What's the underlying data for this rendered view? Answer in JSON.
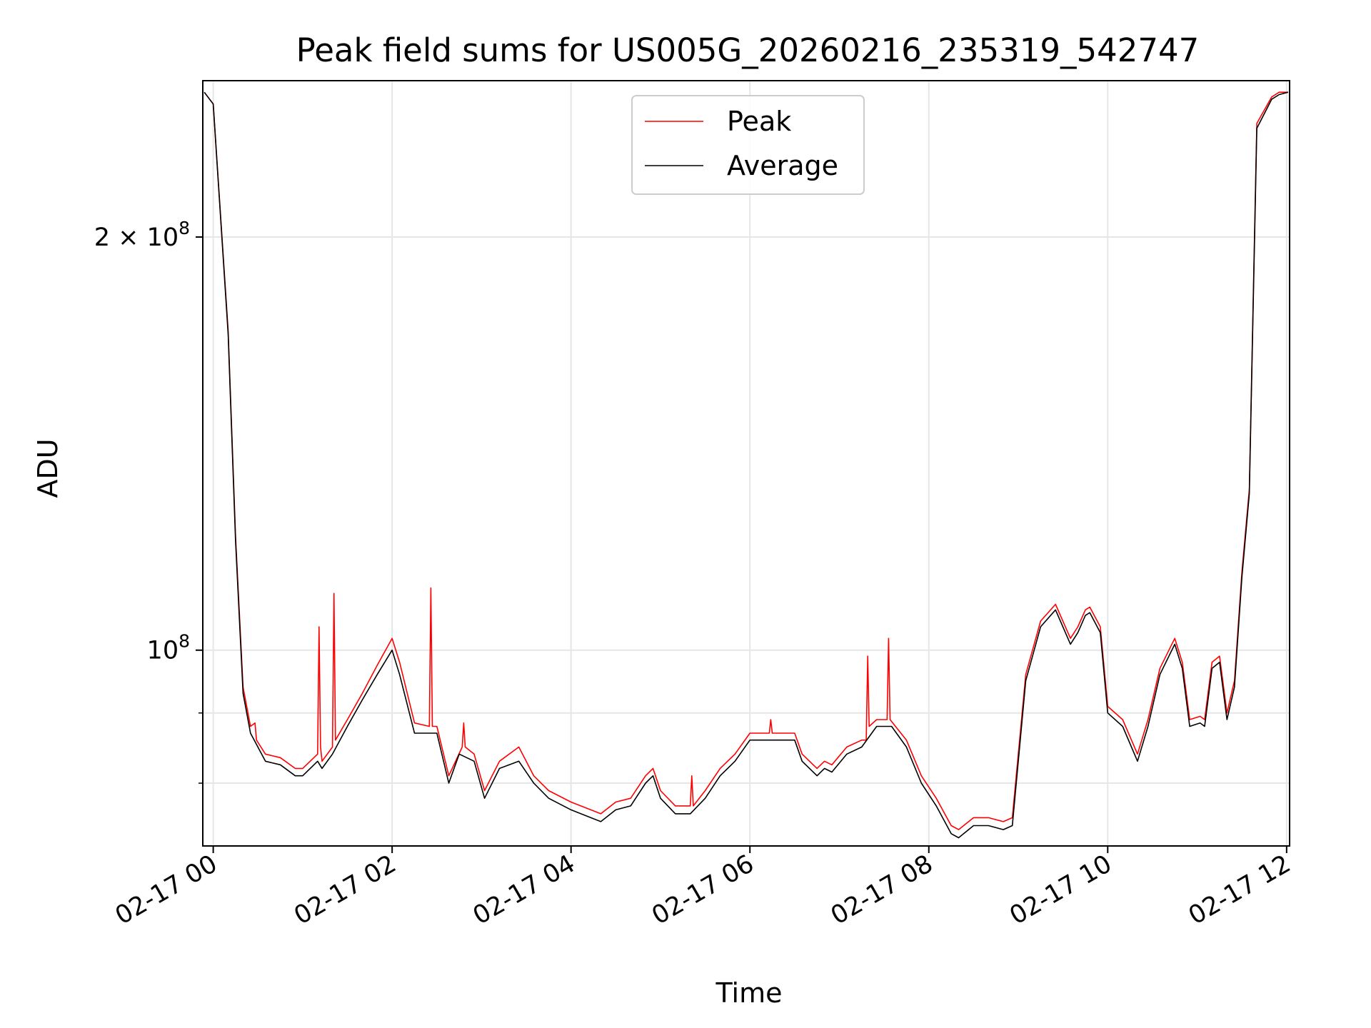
{
  "chart_data": {
    "type": "line",
    "title": "Peak field sums for US005G_20260216_235319_542747",
    "xlabel": "Time",
    "ylabel": "ADU",
    "yscale": "log",
    "ylim": [
      72000000,
      260000000
    ],
    "xlim": [
      "2026-02-16 23:53",
      "2026-02-17 12:02"
    ],
    "x_tick_labels": [
      "02-17 00",
      "02-17 02",
      "02-17 04",
      "02-17 06",
      "02-17 08",
      "02-17 10",
      "02-17 12"
    ],
    "x_ticks": [
      "2026-02-17 00:00",
      "2026-02-17 02:00",
      "2026-02-17 04:00",
      "2026-02-17 06:00",
      "2026-02-17 08:00",
      "2026-02-17 10:00",
      "2026-02-17 12:00"
    ],
    "y_major_ticks": [
      {
        "value": 100000000,
        "label_base": "10",
        "label_exp": "8"
      },
      {
        "value": 200000000,
        "label_base": "2 × 10",
        "label_exp": "8"
      }
    ],
    "y_minor_ticks": [
      80000000,
      90000000
    ],
    "grid": true,
    "legend": {
      "placement": "upper center",
      "entries": [
        "Peak",
        "Average"
      ]
    },
    "series": [
      {
        "name": "Average",
        "color": "#000000",
        "x": [
          "2026-02-16 23:54",
          "2026-02-17 00:00",
          "2026-02-17 00:10",
          "2026-02-17 00:15",
          "2026-02-17 00:20",
          "2026-02-17 00:25",
          "2026-02-17 00:35",
          "2026-02-17 00:45",
          "2026-02-17 00:55",
          "2026-02-17 01:00",
          "2026-02-17 01:10",
          "2026-02-17 01:13",
          "2026-02-17 01:20",
          "2026-02-17 01:30",
          "2026-02-17 01:40",
          "2026-02-17 01:50",
          "2026-02-17 02:00",
          "2026-02-17 02:05",
          "2026-02-17 02:15",
          "2026-02-17 02:25",
          "2026-02-17 02:30",
          "2026-02-17 02:38",
          "2026-02-17 02:45",
          "2026-02-17 02:55",
          "2026-02-17 03:02",
          "2026-02-17 03:12",
          "2026-02-17 03:25",
          "2026-02-17 03:35",
          "2026-02-17 03:45",
          "2026-02-17 04:00",
          "2026-02-17 04:20",
          "2026-02-17 04:30",
          "2026-02-17 04:40",
          "2026-02-17 04:50",
          "2026-02-17 04:55",
          "2026-02-17 05:00",
          "2026-02-17 05:10",
          "2026-02-17 05:20",
          "2026-02-17 05:30",
          "2026-02-17 05:40",
          "2026-02-17 05:50",
          "2026-02-17 06:00",
          "2026-02-17 06:20",
          "2026-02-17 06:30",
          "2026-02-17 06:35",
          "2026-02-17 06:45",
          "2026-02-17 06:50",
          "2026-02-17 06:55",
          "2026-02-17 07:05",
          "2026-02-17 07:15",
          "2026-02-17 07:25",
          "2026-02-17 07:35",
          "2026-02-17 07:45",
          "2026-02-17 07:55",
          "2026-02-17 08:05",
          "2026-02-17 08:15",
          "2026-02-17 08:20",
          "2026-02-17 08:30",
          "2026-02-17 08:40",
          "2026-02-17 08:50",
          "2026-02-17 08:56",
          "2026-02-17 09:05",
          "2026-02-17 09:15",
          "2026-02-17 09:25",
          "2026-02-17 09:35",
          "2026-02-17 09:40",
          "2026-02-17 09:45",
          "2026-02-17 09:48",
          "2026-02-17 09:55",
          "2026-02-17 10:00",
          "2026-02-17 10:10",
          "2026-02-17 10:20",
          "2026-02-17 10:27",
          "2026-02-17 10:35",
          "2026-02-17 10:45",
          "2026-02-17 10:50",
          "2026-02-17 10:55",
          "2026-02-17 11:02",
          "2026-02-17 11:05",
          "2026-02-17 11:10",
          "2026-02-17 11:15",
          "2026-02-17 11:20",
          "2026-02-17 11:25",
          "2026-02-17 11:30",
          "2026-02-17 11:35",
          "2026-02-17 11:40",
          "2026-02-17 11:50",
          "2026-02-17 11:55",
          "2026-02-17 12:01"
        ],
        "values": [
          255000000,
          250000000,
          170000000,
          120000000,
          93000000,
          87000000,
          83000000,
          82500000,
          81000000,
          81000000,
          83000000,
          82000000,
          84000000,
          88000000,
          92000000,
          96000000,
          100000000,
          96000000,
          87000000,
          87000000,
          87000000,
          80000000,
          84000000,
          83000000,
          78000000,
          82000000,
          83000000,
          80000000,
          78000000,
          76500000,
          75000000,
          76500000,
          77000000,
          80000000,
          81000000,
          78000000,
          76000000,
          76000000,
          78000000,
          81000000,
          83000000,
          86000000,
          86000000,
          86000000,
          83000000,
          81000000,
          82000000,
          81500000,
          84000000,
          85000000,
          88000000,
          88000000,
          85000000,
          80000000,
          77000000,
          73500000,
          73000000,
          74500000,
          74500000,
          74000000,
          74500000,
          95000000,
          104000000,
          107000000,
          101000000,
          103000000,
          106000000,
          106500000,
          103000000,
          90000000,
          88000000,
          83000000,
          88000000,
          96000000,
          101000000,
          97000000,
          88000000,
          88500000,
          88000000,
          97000000,
          98000000,
          89000000,
          94000000,
          113000000,
          130000000,
          240000000,
          252000000,
          254000000,
          255000000
        ]
      },
      {
        "name": "Peak",
        "color": "#ff0000",
        "x": [
          "2026-02-16 23:54",
          "2026-02-17 00:00",
          "2026-02-17 00:10",
          "2026-02-17 00:15",
          "2026-02-17 00:20",
          "2026-02-17 00:25",
          "2026-02-17 00:28",
          "2026-02-17 00:29",
          "2026-02-17 00:35",
          "2026-02-17 00:45",
          "2026-02-17 00:55",
          "2026-02-17 01:00",
          "2026-02-17 01:10",
          "2026-02-17 01:11",
          "2026-02-17 01:12",
          "2026-02-17 01:13",
          "2026-02-17 01:20",
          "2026-02-17 01:21",
          "2026-02-17 01:22",
          "2026-02-17 01:30",
          "2026-02-17 01:40",
          "2026-02-17 01:50",
          "2026-02-17 02:00",
          "2026-02-17 02:05",
          "2026-02-17 02:15",
          "2026-02-17 02:25",
          "2026-02-17 02:26",
          "2026-02-17 02:27",
          "2026-02-17 02:30",
          "2026-02-17 02:38",
          "2026-02-17 02:47",
          "2026-02-17 02:48",
          "2026-02-17 02:49",
          "2026-02-17 02:55",
          "2026-02-17 03:02",
          "2026-02-17 03:12",
          "2026-02-17 03:25",
          "2026-02-17 03:35",
          "2026-02-17 03:45",
          "2026-02-17 04:00",
          "2026-02-17 04:20",
          "2026-02-17 04:30",
          "2026-02-17 04:40",
          "2026-02-17 04:50",
          "2026-02-17 04:55",
          "2026-02-17 05:00",
          "2026-02-17 05:10",
          "2026-02-17 05:20",
          "2026-02-17 05:21",
          "2026-02-17 05:22",
          "2026-02-17 05:30",
          "2026-02-17 05:40",
          "2026-02-17 05:50",
          "2026-02-17 06:00",
          "2026-02-17 06:13",
          "2026-02-17 06:14",
          "2026-02-17 06:15",
          "2026-02-17 06:30",
          "2026-02-17 06:35",
          "2026-02-17 06:45",
          "2026-02-17 06:50",
          "2026-02-17 06:55",
          "2026-02-17 07:05",
          "2026-02-17 07:15",
          "2026-02-17 07:18",
          "2026-02-17 07:19",
          "2026-02-17 07:20",
          "2026-02-17 07:25",
          "2026-02-17 07:32",
          "2026-02-17 07:33",
          "2026-02-17 07:34",
          "2026-02-17 07:45",
          "2026-02-17 07:55",
          "2026-02-17 08:05",
          "2026-02-17 08:15",
          "2026-02-17 08:20",
          "2026-02-17 08:30",
          "2026-02-17 08:40",
          "2026-02-17 08:50",
          "2026-02-17 08:56",
          "2026-02-17 09:05",
          "2026-02-17 09:15",
          "2026-02-17 09:25",
          "2026-02-17 09:35",
          "2026-02-17 09:40",
          "2026-02-17 09:45",
          "2026-02-17 09:48",
          "2026-02-17 09:55",
          "2026-02-17 10:00",
          "2026-02-17 10:10",
          "2026-02-17 10:20",
          "2026-02-17 10:27",
          "2026-02-17 10:35",
          "2026-02-17 10:45",
          "2026-02-17 10:50",
          "2026-02-17 10:55",
          "2026-02-17 11:02",
          "2026-02-17 11:05",
          "2026-02-17 11:10",
          "2026-02-17 11:15",
          "2026-02-17 11:20",
          "2026-02-17 11:25",
          "2026-02-17 11:30",
          "2026-02-17 11:35",
          "2026-02-17 11:40",
          "2026-02-17 11:50",
          "2026-02-17 11:55",
          "2026-02-17 12:01"
        ],
        "values": [
          255000000,
          250000000,
          171000000,
          121000000,
          94000000,
          88000000,
          88500000,
          86000000,
          84000000,
          83500000,
          82000000,
          82000000,
          84000000,
          104000000,
          85000000,
          83000000,
          85000000,
          110000000,
          86000000,
          89000000,
          93000000,
          97500000,
          102000000,
          98000000,
          88500000,
          88000000,
          111000000,
          88000000,
          88000000,
          81000000,
          85000000,
          88500000,
          85000000,
          84000000,
          79000000,
          83000000,
          85000000,
          81000000,
          79000000,
          77500000,
          76000000,
          77500000,
          78000000,
          81000000,
          82000000,
          79000000,
          77000000,
          77000000,
          81000000,
          77000000,
          79000000,
          82000000,
          84000000,
          87000000,
          87000000,
          89000000,
          87000000,
          87000000,
          84000000,
          82000000,
          83000000,
          82500000,
          85000000,
          86000000,
          86000000,
          99000000,
          88000000,
          89000000,
          89000000,
          102000000,
          89000000,
          86000000,
          81000000,
          78000000,
          74500000,
          74000000,
          75500000,
          75500000,
          75000000,
          75500000,
          96000000,
          105000000,
          108000000,
          102000000,
          104000000,
          107000000,
          107500000,
          104000000,
          91000000,
          89000000,
          84000000,
          89000000,
          97000000,
          102000000,
          98000000,
          89000000,
          89500000,
          89000000,
          98000000,
          99000000,
          90000000,
          95000000,
          114000000,
          131000000,
          242000000,
          253000000,
          255000000,
          255000000
        ]
      }
    ]
  }
}
